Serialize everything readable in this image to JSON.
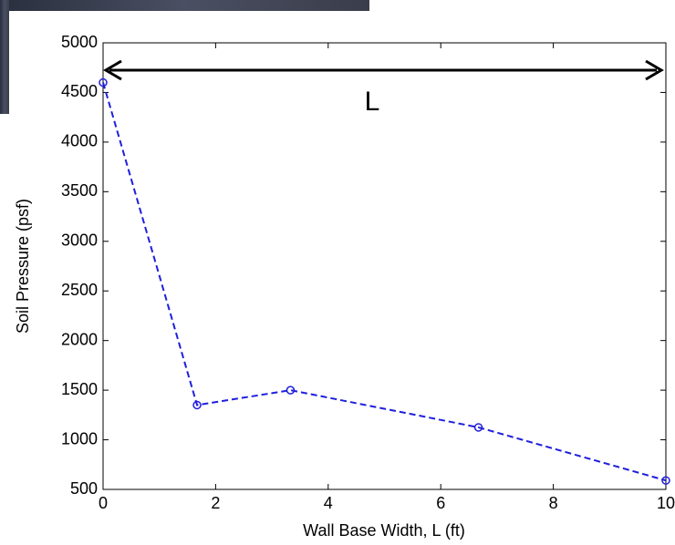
{
  "chart_data": {
    "type": "line",
    "xlabel": "Wall Base Width, L (ft)",
    "ylabel": "Soil Pressure (psf)",
    "annotation": "L",
    "x": [
      0,
      1.67,
      3.33,
      6.67,
      10
    ],
    "series": [
      {
        "name": "Soil Pressure",
        "color": "#1f1fdd",
        "values": [
          4600,
          1350,
          1500,
          1125,
          590
        ]
      }
    ],
    "xlim": [
      0,
      10
    ],
    "xticks": [
      0,
      2,
      4,
      6,
      8,
      10
    ],
    "ylim": [
      500,
      5000
    ],
    "yticks": [
      500,
      1000,
      1500,
      2000,
      2500,
      3000,
      3500,
      4000,
      4500,
      5000
    ],
    "line_style": "dashed",
    "marker": "circle",
    "grid": false
  }
}
